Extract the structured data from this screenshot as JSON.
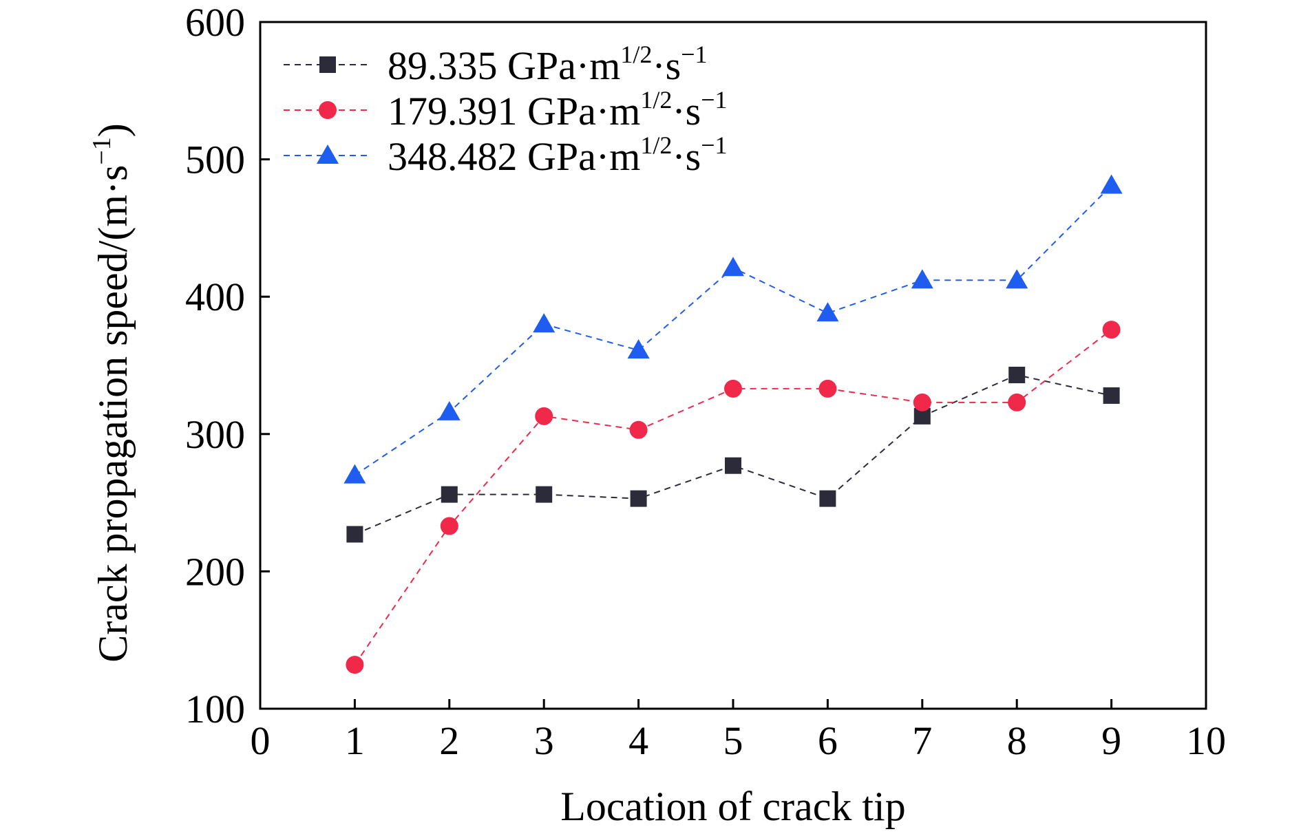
{
  "chart_data": {
    "type": "line",
    "title": "",
    "xlabel": "Location of crack tip",
    "ylabel": "Crack propagation speed/(m·s",
    "ylabel_sup": "−1",
    "ylabel_close": ")",
    "xlim": [
      0,
      10
    ],
    "ylim": [
      100,
      600
    ],
    "xticks": [
      0,
      1,
      2,
      3,
      4,
      5,
      6,
      7,
      8,
      9,
      10
    ],
    "yticks": [
      100,
      200,
      300,
      400,
      500,
      600
    ],
    "grid": false,
    "legend_position": "top-left",
    "x": [
      1,
      2,
      3,
      4,
      5,
      6,
      7,
      8,
      9
    ],
    "series": [
      {
        "name": "89.335 GPa·m1/2·s−1",
        "label_main": "89.335 GPa·m",
        "label_sup1": "1/2",
        "label_mid": "·s",
        "label_sup2": "−1",
        "marker": "square",
        "color": "#2b2b3a",
        "values": [
          227,
          256,
          256,
          253,
          277,
          253,
          313,
          343,
          328
        ]
      },
      {
        "name": "179.391 GPa·m1/2·s−1",
        "label_main": "179.391 GPa·m",
        "label_sup1": "1/2",
        "label_mid": "·s",
        "label_sup2": "−1",
        "marker": "circle",
        "color": "#f0284a",
        "values": [
          132,
          233,
          313,
          303,
          333,
          333,
          323,
          323,
          376
        ]
      },
      {
        "name": "348.482 GPa·m1/2·s−1",
        "label_main": "348.482 GPa·m",
        "label_sup1": "1/2",
        "label_mid": "·s",
        "label_sup2": "−1",
        "marker": "triangle",
        "color": "#1f5cf0",
        "values": [
          270,
          316,
          380,
          361,
          421,
          388,
          412,
          412,
          481
        ]
      }
    ]
  }
}
